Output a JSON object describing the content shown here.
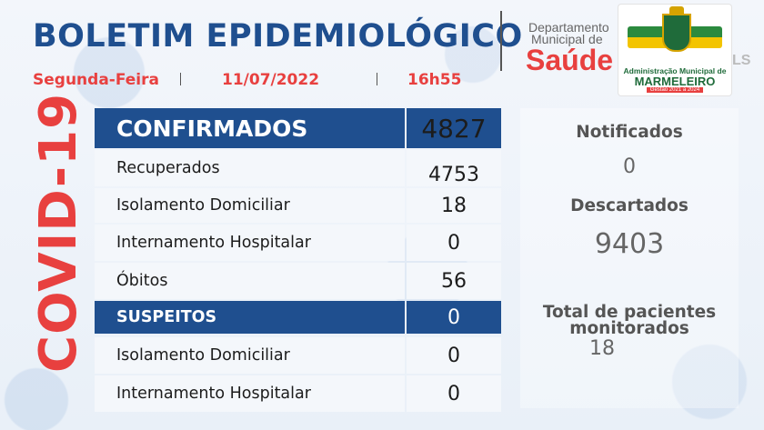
{
  "header": {
    "title": "BOLETIM EPIDEMIOLÓGICO",
    "weekday": "Segunda-Feira",
    "date": "11/07/2022",
    "time": "16h55",
    "dept_line1": "Departamento",
    "dept_line2": "Municipal de",
    "dept_name": "Saúde"
  },
  "logo": {
    "admin_text": "Administração Municipal de",
    "city": "MARMELEIRO",
    "term": "Gestão 2021 a 2024",
    "tail": "LS"
  },
  "side_label": "COVID-19",
  "table": {
    "confirmados": {
      "label": "CONFIRMADOS",
      "value": "4827"
    },
    "rows_confirmados": [
      {
        "label": "Recuperados",
        "value": "4753"
      },
      {
        "label": "Isolamento Domiciliar",
        "value": "18"
      },
      {
        "label": "Internamento Hospitalar",
        "value": "0"
      },
      {
        "label": "Óbitos",
        "value": "56"
      }
    ],
    "suspeitos": {
      "label": "SUSPEITOS",
      "value": "0"
    },
    "rows_suspeitos": [
      {
        "label": "Isolamento Domiciliar",
        "value": "0"
      },
      {
        "label": "Internamento Hospitalar",
        "value": "0"
      }
    ]
  },
  "panel": {
    "notificados_label": "Notificados",
    "notificados_value": "0",
    "descartados_label": "Descartados",
    "descartados_value": "9403",
    "monitorados_label_1": "Total de pacientes",
    "monitorados_label_2": "monitorados",
    "monitorados_value": "18"
  },
  "colors": {
    "primary_blue": "#1f4f8f",
    "accent_red": "#e8403f"
  }
}
